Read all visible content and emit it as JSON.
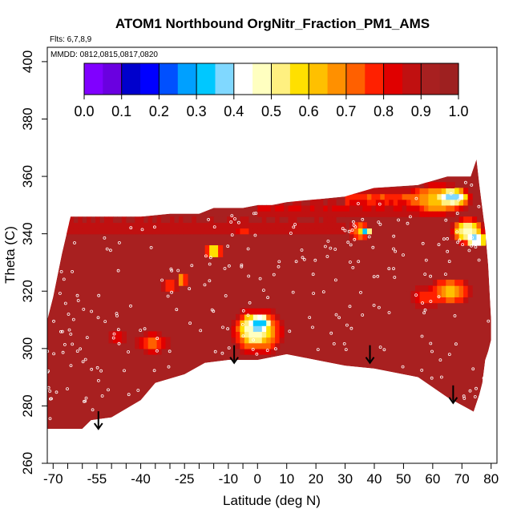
{
  "chart_data": {
    "type": "heatmap",
    "title": "ATOM1 Northbound OrgNitr_Fraction_PM1_AMS",
    "subtitle": "Flts: 6,7,8,9",
    "annotation": "MMDD: 0812,0815,0817,0820",
    "xlabel": "Latitude (deg N)",
    "ylabel": "Theta (C)",
    "xlim": [
      -72,
      82
    ],
    "ylim": [
      260,
      405
    ],
    "x_ticks": [
      -70,
      -55,
      -40,
      -25,
      -10,
      0,
      10,
      20,
      30,
      40,
      50,
      60,
      70,
      80
    ],
    "x_tick_labels": [
      "-70",
      "-55",
      "-40",
      "-25",
      "-10",
      "0",
      "10",
      "20",
      "30",
      "40",
      "50",
      "60",
      "70",
      "80"
    ],
    "x_minor_ticks": [
      -65,
      -60,
      -50,
      -45,
      -35,
      -30,
      -20,
      -15,
      -5
    ],
    "y_ticks": [
      260,
      280,
      300,
      320,
      340,
      360,
      380,
      400
    ],
    "y_tick_labels": [
      "260",
      "280",
      "300",
      "320",
      "340",
      "360",
      "380",
      "400"
    ],
    "colorbar": {
      "ticks": [
        0.0,
        0.1,
        0.2,
        0.3,
        0.4,
        0.5,
        0.6,
        0.7,
        0.8,
        0.9,
        1.0
      ],
      "tick_labels": [
        "0.0",
        "0.1",
        "0.2",
        "0.3",
        "0.4",
        "0.5",
        "0.6",
        "0.7",
        "0.8",
        "0.9",
        "1.0"
      ],
      "colors": [
        "#8000ff",
        "#6a00e0",
        "#0000cc",
        "#0000ff",
        "#0050ff",
        "#00a0ff",
        "#00c8ff",
        "#80d8ff",
        "#ffffff",
        "#ffffc0",
        "#fff080",
        "#ffe000",
        "#ffc000",
        "#ff9000",
        "#ff6000",
        "#ff2000",
        "#e00000",
        "#c01010",
        "#a82020",
        "#9e2020"
      ]
    },
    "arrows": [
      {
        "lat": -54.5,
        "theta": 272
      },
      {
        "lat": -8,
        "theta": 295
      },
      {
        "lat": 38.5,
        "theta": 295
      },
      {
        "lat": 67,
        "theta": 281
      }
    ],
    "domain_top": [
      [
        -72,
        310
      ],
      [
        -70,
        318
      ],
      [
        -67,
        333
      ],
      [
        -64,
        346
      ],
      [
        -40,
        346
      ],
      [
        -30,
        347
      ],
      [
        -20,
        347
      ],
      [
        -15,
        349
      ],
      [
        -5,
        349
      ],
      [
        0,
        350
      ],
      [
        5,
        350
      ],
      [
        10,
        351
      ],
      [
        20,
        352
      ],
      [
        30,
        353
      ],
      [
        40,
        356
      ],
      [
        55,
        357
      ],
      [
        65,
        360
      ],
      [
        73,
        360
      ],
      [
        75,
        366
      ],
      [
        76,
        357
      ],
      [
        78,
        341
      ],
      [
        79,
        329
      ],
      [
        80,
        310
      ],
      [
        80,
        303
      ],
      [
        79,
        299
      ],
      [
        78,
        296
      ],
      [
        77,
        288
      ],
      [
        76,
        284
      ],
      [
        74,
        278
      ]
    ],
    "domain_bottom": [
      [
        -72,
        272
      ],
      [
        -60,
        272
      ],
      [
        -57,
        275
      ],
      [
        -50,
        276
      ],
      [
        -40,
        282
      ],
      [
        -35,
        288
      ],
      [
        -25,
        291
      ],
      [
        -18,
        295
      ],
      [
        -10,
        296
      ],
      [
        0,
        296
      ],
      [
        10,
        298
      ],
      [
        20,
        296
      ],
      [
        30,
        294
      ],
      [
        40,
        293
      ],
      [
        55,
        290
      ],
      [
        65,
        283
      ],
      [
        74,
        278
      ]
    ],
    "background_value": 0.93,
    "features": [
      {
        "type": "blob",
        "lat": 0,
        "theta": 306,
        "rx": 10,
        "ry": 9,
        "value": 0.6
      },
      {
        "type": "blob",
        "lat": -1,
        "theta": 307,
        "rx": 6,
        "ry": 6,
        "value": 0.45
      },
      {
        "type": "blob",
        "lat": 1,
        "theta": 309,
        "rx": 4,
        "ry": 3,
        "value": 0.3
      },
      {
        "type": "blob",
        "lat": -36,
        "theta": 302,
        "rx": 6,
        "ry": 4,
        "value": 0.72
      },
      {
        "type": "blob",
        "lat": -48,
        "theta": 304,
        "rx": 3,
        "ry": 3,
        "value": 0.82
      },
      {
        "type": "blob",
        "lat": 66,
        "theta": 320,
        "rx": 8,
        "ry": 5,
        "value": 0.62
      },
      {
        "type": "blob",
        "lat": 58,
        "theta": 318,
        "rx": 7,
        "ry": 4,
        "value": 0.78
      },
      {
        "type": "blob",
        "lat": 72,
        "theta": 341,
        "rx": 6,
        "ry": 5,
        "value": 0.45
      },
      {
        "type": "blob",
        "lat": 75,
        "theta": 338,
        "rx": 4,
        "ry": 3,
        "value": 0.35
      },
      {
        "type": "blob",
        "lat": 62,
        "theta": 352,
        "rx": 12,
        "ry": 6,
        "value": 0.6
      },
      {
        "type": "blob",
        "lat": 67,
        "theta": 353,
        "rx": 6,
        "ry": 3,
        "value": 0.35
      },
      {
        "type": "blob",
        "lat": 35,
        "theta": 341,
        "rx": 4,
        "ry": 4,
        "value": 0.68
      },
      {
        "type": "blob",
        "lat": 37,
        "theta": 341,
        "rx": 2,
        "ry": 2,
        "value": 0.3
      },
      {
        "type": "blob",
        "lat": -15,
        "theta": 334,
        "rx": 3,
        "ry": 3,
        "value": 0.5
      },
      {
        "type": "blob",
        "lat": -5,
        "theta": 341,
        "rx": 3,
        "ry": 2,
        "value": 0.75
      },
      {
        "type": "blob",
        "lat": -30,
        "theta": 322,
        "rx": 3,
        "ry": 2,
        "value": 0.7
      },
      {
        "type": "blob",
        "lat": -26,
        "theta": 324,
        "rx": 2,
        "ry": 2,
        "value": 0.55
      },
      {
        "type": "band",
        "theta_min": 338,
        "theta_max": 347,
        "lat_min": -66,
        "lat_max": 30,
        "value": 0.85
      },
      {
        "type": "band",
        "theta_min": 345,
        "theta_max": 352,
        "lat_min": 0,
        "lat_max": 60,
        "value": 0.8
      },
      {
        "type": "band",
        "theta_min": 349,
        "theta_max": 356,
        "lat_min": 30,
        "lat_max": 72,
        "value": 0.7
      }
    ]
  }
}
